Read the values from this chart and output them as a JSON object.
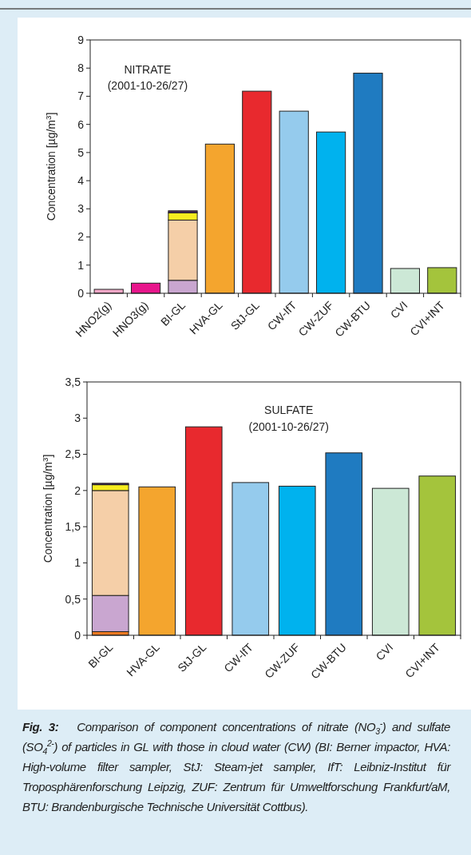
{
  "chart_data": [
    {
      "type": "bar",
      "stacked": true,
      "grid": false,
      "ylabel": "Concentration [µg/m$^{3}$]",
      "categories": [
        "HNO2(g)",
        "HNO3(g)",
        "BI-GL",
        "HVA-GL",
        "StJ-GL",
        "CW-IfT",
        "CW-ZUF",
        "CW-BTU",
        "CVI",
        "CVI+INT"
      ],
      "series": [
        {
          "colors": [
            "#f4a8c8",
            "#e8168c",
            "#c9a6d0",
            "#f4a52e",
            "#e8292e",
            "#95cbed",
            "#00b2ee",
            "#1f7bc1",
            "#cce8d6",
            "#a4c43c"
          ],
          "values": [
            0.14,
            0.36,
            0.46,
            5.3,
            7.18,
            6.47,
            5.73,
            7.82,
            0.88,
            0.91
          ]
        },
        {
          "color": "#f5cfa8",
          "values": [
            null,
            null,
            2.14,
            null,
            null,
            null,
            null,
            null,
            null,
            null
          ]
        },
        {
          "color": "#f7ec1f",
          "values": [
            null,
            null,
            0.26,
            null,
            null,
            null,
            null,
            null,
            null,
            null
          ]
        },
        {
          "color": "#4a2a5c",
          "values": [
            null,
            null,
            0.07,
            null,
            null,
            null,
            null,
            null,
            null,
            null
          ]
        }
      ],
      "ylim": [
        0,
        9
      ],
      "yticks": [
        0,
        1,
        2,
        3,
        4,
        5,
        6,
        7,
        8,
        9
      ],
      "annotations": [
        "NITRATE",
        "(2001-10-26/27)"
      ]
    },
    {
      "type": "bar",
      "stacked": true,
      "grid": false,
      "ylabel": "Concentration [µg/m$^{3}$]",
      "categories": [
        "BI-GL",
        "HVA-GL",
        "StJ-GL",
        "CW-IfT",
        "CW-ZUF",
        "CW-BTU",
        "CVI",
        "CVI+INT"
      ],
      "series": [
        {
          "colors": [
            "#f07a22",
            "#f4a52e",
            "#e8292e",
            "#95cbed",
            "#00b2ee",
            "#1f7bc1",
            "#cce8d6",
            "#a4c43c"
          ],
          "values": [
            0.05,
            2.05,
            2.88,
            2.11,
            2.06,
            2.52,
            2.03,
            2.2
          ]
        },
        {
          "color": "#c9a6d0",
          "values": [
            0.5,
            null,
            null,
            null,
            null,
            null,
            null,
            null
          ]
        },
        {
          "color": "#f5cfa8",
          "values": [
            1.45,
            null,
            null,
            null,
            null,
            null,
            null,
            null
          ]
        },
        {
          "color": "#f7ec1f",
          "values": [
            0.08,
            null,
            null,
            null,
            null,
            null,
            null,
            null
          ]
        },
        {
          "color": "#4a2a5c",
          "values": [
            0.02,
            null,
            null,
            null,
            null,
            null,
            null,
            null
          ]
        }
      ],
      "ylim": [
        0,
        3.5
      ],
      "yticks": [
        0,
        {
          "value": 0.5,
          "label": "0,5"
        },
        1,
        {
          "value": 1.5,
          "label": "1,5"
        },
        2,
        {
          "value": 2.5,
          "label": "2,5"
        },
        3,
        {
          "value": 3.5,
          "label": "3,5"
        }
      ],
      "annotations": [
        "SULFATE",
        "(2001-10-26/27)",
        "Fig. 3:",
        "Comparison of component concentrations of nitrate (NO$_{3}$$^{-}$) and sulfate (SO$_{4}$$^{2-}$) of particles in GL with those in cloud water (CW) (BI: Berner impactor, HVA: High-volume filter sampler, StJ: Steam-jet sampler, IfT: Leibniz-Institut für Troposphärenforschung Leipzig, ZUF: Zentrum für Umweltforschung Frankfurt/aM, BTU: Brandenburgische Technische Universität Cottbus)."
      ]
    }
  ]
}
